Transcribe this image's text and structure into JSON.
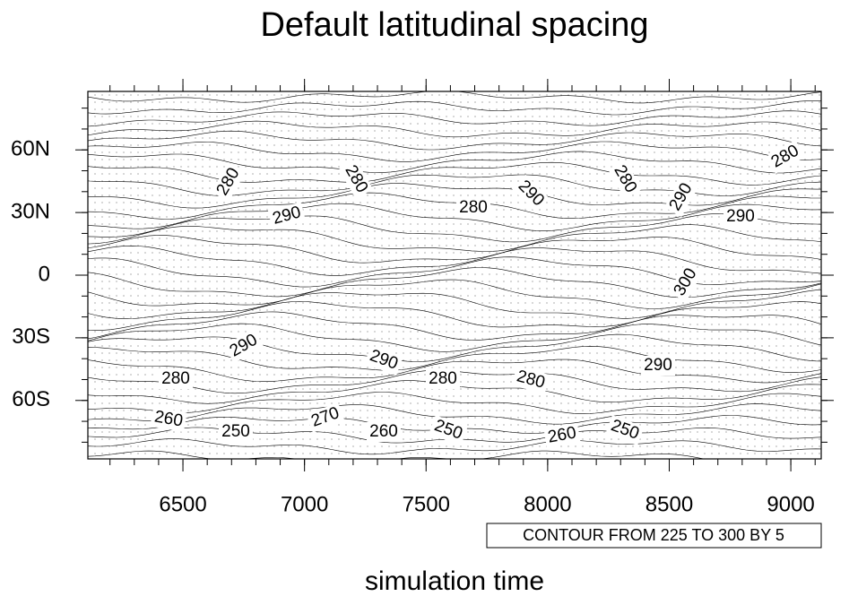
{
  "chart_data": {
    "type": "contour",
    "title": "Default latitudinal spacing",
    "x_label": "simulation time",
    "info_label": "CONTOUR FROM 225 TO 300 BY 5",
    "xlim": [
      6109,
      9125
    ],
    "xticks": [
      6500,
      7000,
      7500,
      8000,
      8500,
      9000
    ],
    "ylim": [
      -88,
      88
    ],
    "yticks": [
      {
        "value": 60,
        "label": "60N"
      },
      {
        "value": 30,
        "label": "30N"
      },
      0,
      {
        "value": -30,
        "label": "30S"
      },
      {
        "value": -60,
        "label": "60S"
      }
    ],
    "contour_labels": [
      280,
      290,
      280,
      280,
      290,
      280,
      290,
      290,
      280,
      300,
      290,
      290,
      280,
      280,
      280,
      290,
      260,
      270,
      250,
      260,
      250,
      260,
      250
    ],
    "color": "#000000"
  }
}
